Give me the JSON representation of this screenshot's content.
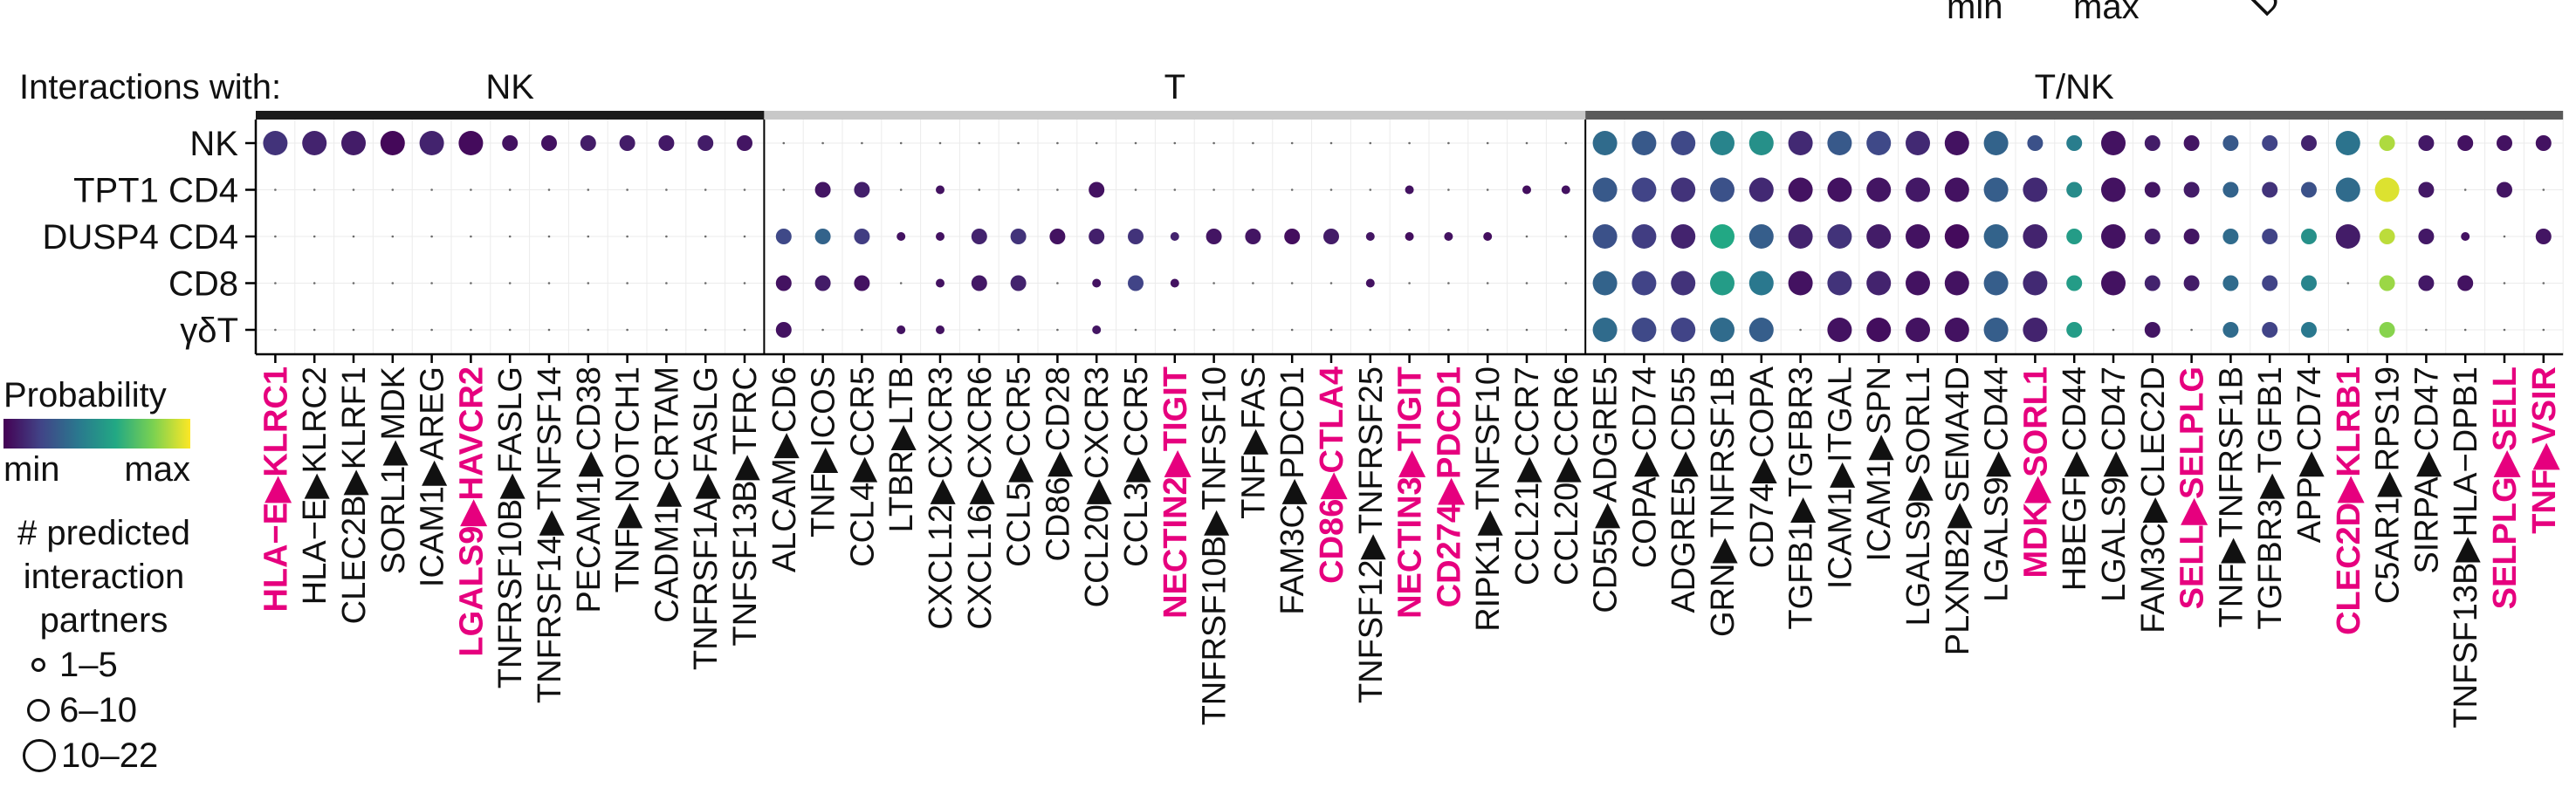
{
  "top_remnants": {
    "min": "min",
    "max": "max",
    "rotated": "DU"
  },
  "interactions_label": "Interactions with:",
  "legend": {
    "probability_title": "Probability",
    "min": "min",
    "max": "max",
    "size_title": [
      "# predicted",
      "interaction",
      "partners"
    ],
    "size_items": [
      "1–5",
      "6–10",
      "10–22"
    ]
  },
  "colors": {
    "highlight": "#e6007e",
    "group_nk": "#1a1a1a",
    "group_t": "#c8c8c8",
    "group_tnk": "#5a5a5a",
    "viridis": [
      "#440154",
      "#414487",
      "#2a788e",
      "#22a884",
      "#7ad151",
      "#fde725"
    ]
  },
  "chart_data": {
    "type": "scatter",
    "groups": [
      {
        "label": "NK",
        "count": 13
      },
      {
        "label": "T",
        "count": 21
      },
      {
        "label": "T/NK",
        "count": 25
      }
    ],
    "rows": [
      "NK",
      "TPT1 CD4",
      "DUSP4 CD4",
      "CD8",
      "γδT"
    ],
    "columns": [
      {
        "label": "HLA−E▶KLRC1",
        "highlight": true
      },
      {
        "label": "HLA−E▶KLRC2",
        "highlight": false
      },
      {
        "label": "CLEC2B▶KLRF1",
        "highlight": false
      },
      {
        "label": "SORL1▶MDK",
        "highlight": false
      },
      {
        "label": "ICAM1▶AREG",
        "highlight": false
      },
      {
        "label": "LGALS9▶HAVCR2",
        "highlight": true
      },
      {
        "label": "TNFRSF10B▶FASLG",
        "highlight": false
      },
      {
        "label": "TNFRSF14▶TNFSF14",
        "highlight": false
      },
      {
        "label": "PECAM1▶CD38",
        "highlight": false
      },
      {
        "label": "TNF▶NOTCH1",
        "highlight": false
      },
      {
        "label": "CADM1▶CRTAM",
        "highlight": false
      },
      {
        "label": "TNFRSF1A▶FASLG",
        "highlight": false
      },
      {
        "label": "TNFSF13B▶TFRC",
        "highlight": false
      },
      {
        "label": "ALCAM▶CD6",
        "highlight": false
      },
      {
        "label": "TNF▶ICOS",
        "highlight": false
      },
      {
        "label": "CCL4▶CCR5",
        "highlight": false
      },
      {
        "label": "LTBR▶LTB",
        "highlight": false
      },
      {
        "label": "CXCL12▶CXCR3",
        "highlight": false
      },
      {
        "label": "CXCL16▶CXCR6",
        "highlight": false
      },
      {
        "label": "CCL5▶CCR5",
        "highlight": false
      },
      {
        "label": "CD86▶CD28",
        "highlight": false
      },
      {
        "label": "CCL20▶CXCR3",
        "highlight": false
      },
      {
        "label": "CCL3▶CCR5",
        "highlight": false
      },
      {
        "label": "NECTIN2▶TIGIT",
        "highlight": true
      },
      {
        "label": "TNFRSF10B▶TNFSF10",
        "highlight": false
      },
      {
        "label": "TNF▶FAS",
        "highlight": false
      },
      {
        "label": "FAM3C▶PDCD1",
        "highlight": false
      },
      {
        "label": "CD86▶CTLA4",
        "highlight": true
      },
      {
        "label": "TNFSF12▶TNFRSF25",
        "highlight": false
      },
      {
        "label": "NECTIN3▶TIGIT",
        "highlight": true
      },
      {
        "label": "CD274▶PDCD1",
        "highlight": true
      },
      {
        "label": "RIPK1▶TNFSF10",
        "highlight": false
      },
      {
        "label": "CCL21▶CCR7",
        "highlight": false
      },
      {
        "label": "CCL20▶CCR6",
        "highlight": false
      },
      {
        "label": "CD55▶ADGRE5",
        "highlight": false
      },
      {
        "label": "COPA▶CD74",
        "highlight": false
      },
      {
        "label": "ADGRE5▶CD55",
        "highlight": false
      },
      {
        "label": "GRN▶TNFRSF1B",
        "highlight": false
      },
      {
        "label": "CD74▶COPA",
        "highlight": false
      },
      {
        "label": "TGFB1▶TGFBR3",
        "highlight": false
      },
      {
        "label": "ICAM1▶ITGAL",
        "highlight": false
      },
      {
        "label": "ICAM1▶SPN",
        "highlight": false
      },
      {
        "label": "LGALS9▶SORL1",
        "highlight": false
      },
      {
        "label": "PLXNB2▶SEMA4D",
        "highlight": false
      },
      {
        "label": "LGALS9▶CD44",
        "highlight": false
      },
      {
        "label": "MDK▶SORL1",
        "highlight": true
      },
      {
        "label": "HBEGF▶CD44",
        "highlight": false
      },
      {
        "label": "LGALS9▶CD47",
        "highlight": false
      },
      {
        "label": "FAM3C▶CLEC2D",
        "highlight": false
      },
      {
        "label": "SELL▶SELPLG",
        "highlight": true
      },
      {
        "label": "TNF▶TNFRSF1B",
        "highlight": false
      },
      {
        "label": "TGFBR3▶TGFB1",
        "highlight": false
      },
      {
        "label": "APP▶CD74",
        "highlight": false
      },
      {
        "label": "CLEC2D▶KLRB1",
        "highlight": true
      },
      {
        "label": "C5AR1▶RPS19",
        "highlight": false
      },
      {
        "label": "SIRPA▶CD47",
        "highlight": false
      },
      {
        "label": "TNFSF13B▶HLA−DPB1",
        "highlight": false
      },
      {
        "label": "SELPLG▶SELL",
        "highlight": true
      },
      {
        "label": "TNF▶VSIR",
        "highlight": true
      }
    ],
    "size_classes": [
      "1–5",
      "6–10",
      "10–22"
    ],
    "probability_scale": [
      "min",
      "max"
    ],
    "points": [
      [
        0,
        0,
        0.15,
        3
      ],
      [
        0,
        1,
        0.1,
        3
      ],
      [
        0,
        2,
        0.08,
        3
      ],
      [
        0,
        3,
        0.02,
        3
      ],
      [
        0,
        4,
        0.1,
        3
      ],
      [
        0,
        5,
        0.03,
        3
      ],
      [
        0,
        6,
        0.05,
        2
      ],
      [
        0,
        7,
        0.05,
        2
      ],
      [
        0,
        8,
        0.08,
        2
      ],
      [
        0,
        9,
        0.08,
        2
      ],
      [
        0,
        10,
        0.07,
        2
      ],
      [
        0,
        11,
        0.08,
        2
      ],
      [
        0,
        12,
        0.06,
        2
      ],
      [
        0,
        34,
        0.35,
        3
      ],
      [
        0,
        35,
        0.28,
        3
      ],
      [
        0,
        36,
        0.22,
        3
      ],
      [
        0,
        37,
        0.45,
        3
      ],
      [
        0,
        38,
        0.5,
        3
      ],
      [
        0,
        39,
        0.12,
        3
      ],
      [
        0,
        40,
        0.28,
        3
      ],
      [
        0,
        41,
        0.22,
        3
      ],
      [
        0,
        42,
        0.12,
        3
      ],
      [
        0,
        43,
        0.05,
        3
      ],
      [
        0,
        44,
        0.32,
        3
      ],
      [
        0,
        45,
        0.25,
        2
      ],
      [
        0,
        46,
        0.42,
        2
      ],
      [
        0,
        47,
        0.05,
        3
      ],
      [
        0,
        48,
        0.08,
        2
      ],
      [
        0,
        49,
        0.06,
        2
      ],
      [
        0,
        50,
        0.28,
        2
      ],
      [
        0,
        51,
        0.2,
        2
      ],
      [
        0,
        52,
        0.1,
        2
      ],
      [
        0,
        53,
        0.38,
        3
      ],
      [
        0,
        54,
        0.88,
        2
      ],
      [
        0,
        55,
        0.07,
        2
      ],
      [
        0,
        56,
        0.05,
        2
      ],
      [
        0,
        57,
        0.05,
        2
      ],
      [
        0,
        58,
        0.05,
        2
      ],
      [
        1,
        14,
        0.06,
        2
      ],
      [
        1,
        15,
        0.09,
        2
      ],
      [
        1,
        17,
        0.05,
        1
      ],
      [
        1,
        21,
        0.05,
        2
      ],
      [
        1,
        29,
        0.05,
        1
      ],
      [
        1,
        32,
        0.04,
        1
      ],
      [
        1,
        33,
        0.05,
        1
      ],
      [
        1,
        34,
        0.28,
        3
      ],
      [
        1,
        35,
        0.2,
        3
      ],
      [
        1,
        36,
        0.15,
        3
      ],
      [
        1,
        37,
        0.25,
        3
      ],
      [
        1,
        38,
        0.12,
        3
      ],
      [
        1,
        39,
        0.05,
        3
      ],
      [
        1,
        40,
        0.05,
        3
      ],
      [
        1,
        41,
        0.06,
        3
      ],
      [
        1,
        42,
        0.07,
        3
      ],
      [
        1,
        43,
        0.05,
        3
      ],
      [
        1,
        44,
        0.3,
        3
      ],
      [
        1,
        45,
        0.12,
        3
      ],
      [
        1,
        46,
        0.48,
        2
      ],
      [
        1,
        47,
        0.05,
        3
      ],
      [
        1,
        48,
        0.06,
        2
      ],
      [
        1,
        49,
        0.08,
        2
      ],
      [
        1,
        50,
        0.32,
        2
      ],
      [
        1,
        51,
        0.15,
        2
      ],
      [
        1,
        52,
        0.25,
        2
      ],
      [
        1,
        53,
        0.35,
        3
      ],
      [
        1,
        54,
        0.95,
        3
      ],
      [
        1,
        55,
        0.07,
        2
      ],
      [
        1,
        57,
        0.06,
        2
      ],
      [
        2,
        13,
        0.22,
        2
      ],
      [
        2,
        14,
        0.32,
        2
      ],
      [
        2,
        15,
        0.18,
        2
      ],
      [
        2,
        16,
        0.05,
        1
      ],
      [
        2,
        17,
        0.05,
        1
      ],
      [
        2,
        18,
        0.1,
        2
      ],
      [
        2,
        19,
        0.15,
        2
      ],
      [
        2,
        20,
        0.05,
        2
      ],
      [
        2,
        21,
        0.09,
        2
      ],
      [
        2,
        22,
        0.15,
        2
      ],
      [
        2,
        23,
        0.1,
        1
      ],
      [
        2,
        24,
        0.06,
        2
      ],
      [
        2,
        25,
        0.06,
        2
      ],
      [
        2,
        26,
        0.04,
        2
      ],
      [
        2,
        27,
        0.08,
        2
      ],
      [
        2,
        28,
        0.06,
        1
      ],
      [
        2,
        29,
        0.04,
        1
      ],
      [
        2,
        30,
        0.05,
        1
      ],
      [
        2,
        31,
        0.04,
        1
      ],
      [
        2,
        34,
        0.25,
        3
      ],
      [
        2,
        35,
        0.18,
        3
      ],
      [
        2,
        36,
        0.1,
        3
      ],
      [
        2,
        37,
        0.6,
        3
      ],
      [
        2,
        38,
        0.3,
        3
      ],
      [
        2,
        39,
        0.1,
        3
      ],
      [
        2,
        40,
        0.15,
        3
      ],
      [
        2,
        41,
        0.08,
        3
      ],
      [
        2,
        42,
        0.05,
        3
      ],
      [
        2,
        43,
        0.03,
        3
      ],
      [
        2,
        44,
        0.32,
        3
      ],
      [
        2,
        45,
        0.1,
        3
      ],
      [
        2,
        46,
        0.55,
        2
      ],
      [
        2,
        47,
        0.05,
        3
      ],
      [
        2,
        48,
        0.08,
        2
      ],
      [
        2,
        49,
        0.06,
        2
      ],
      [
        2,
        50,
        0.35,
        2
      ],
      [
        2,
        51,
        0.2,
        2
      ],
      [
        2,
        52,
        0.5,
        2
      ],
      [
        2,
        53,
        0.08,
        3
      ],
      [
        2,
        54,
        0.9,
        2
      ],
      [
        2,
        55,
        0.07,
        2
      ],
      [
        2,
        56,
        0.05,
        1
      ],
      [
        2,
        58,
        0.06,
        2
      ],
      [
        3,
        13,
        0.05,
        2
      ],
      [
        3,
        14,
        0.08,
        2
      ],
      [
        3,
        15,
        0.05,
        2
      ],
      [
        3,
        17,
        0.05,
        1
      ],
      [
        3,
        18,
        0.07,
        2
      ],
      [
        3,
        19,
        0.1,
        2
      ],
      [
        3,
        21,
        0.05,
        1
      ],
      [
        3,
        22,
        0.2,
        2
      ],
      [
        3,
        23,
        0.05,
        1
      ],
      [
        3,
        28,
        0.05,
        1
      ],
      [
        3,
        34,
        0.32,
        3
      ],
      [
        3,
        35,
        0.2,
        3
      ],
      [
        3,
        36,
        0.15,
        3
      ],
      [
        3,
        37,
        0.55,
        3
      ],
      [
        3,
        38,
        0.4,
        3
      ],
      [
        3,
        39,
        0.05,
        3
      ],
      [
        3,
        40,
        0.15,
        3
      ],
      [
        3,
        41,
        0.1,
        3
      ],
      [
        3,
        42,
        0.05,
        3
      ],
      [
        3,
        43,
        0.05,
        3
      ],
      [
        3,
        44,
        0.3,
        3
      ],
      [
        3,
        45,
        0.12,
        3
      ],
      [
        3,
        46,
        0.55,
        2
      ],
      [
        3,
        47,
        0.05,
        3
      ],
      [
        3,
        48,
        0.1,
        2
      ],
      [
        3,
        49,
        0.08,
        2
      ],
      [
        3,
        50,
        0.35,
        2
      ],
      [
        3,
        51,
        0.2,
        2
      ],
      [
        3,
        52,
        0.45,
        2
      ],
      [
        3,
        54,
        0.85,
        2
      ],
      [
        3,
        55,
        0.07,
        2
      ],
      [
        3,
        56,
        0.05,
        2
      ],
      [
        4,
        13,
        0.05,
        2
      ],
      [
        4,
        16,
        0.05,
        1
      ],
      [
        4,
        17,
        0.05,
        1
      ],
      [
        4,
        21,
        0.06,
        1
      ],
      [
        4,
        34,
        0.35,
        3
      ],
      [
        4,
        35,
        0.22,
        3
      ],
      [
        4,
        36,
        0.2,
        3
      ],
      [
        4,
        37,
        0.35,
        3
      ],
      [
        4,
        38,
        0.3,
        3
      ],
      [
        4,
        40,
        0.05,
        3
      ],
      [
        4,
        41,
        0.04,
        3
      ],
      [
        4,
        42,
        0.05,
        3
      ],
      [
        4,
        43,
        0.05,
        3
      ],
      [
        4,
        44,
        0.3,
        3
      ],
      [
        4,
        45,
        0.1,
        3
      ],
      [
        4,
        46,
        0.55,
        2
      ],
      [
        4,
        48,
        0.06,
        2
      ],
      [
        4,
        50,
        0.35,
        2
      ],
      [
        4,
        51,
        0.2,
        2
      ],
      [
        4,
        52,
        0.4,
        2
      ],
      [
        4,
        54,
        0.82,
        2
      ]
    ]
  }
}
